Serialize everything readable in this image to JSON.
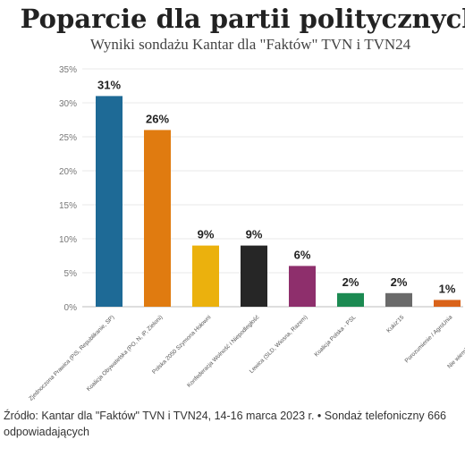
{
  "chart_data": {
    "type": "bar",
    "title": "Poparcie dla partii politycznych",
    "subtitle": "Wyniki sondażu Kantar dla \"Faktów\" TVN i TVN24",
    "categories": [
      "Zjednoczona Prawica (PiS, Republikanie, SP)",
      "Koalicja Obywatelska (PO, N, iP, Zieloni)",
      "Polska 2050 Szymona Hołowni",
      "Konfederacja Wolność i Niepodległość",
      "Lewica (SLD, Wiosna, Razem)",
      "Koalicja Polska - PSL",
      "Kukiz'15",
      "Porozumienie / AgroUnia",
      "Nie wiem/trudno powiedzieć"
    ],
    "values": [
      31,
      26,
      9,
      9,
      6,
      2,
      2,
      1,
      null
    ],
    "data_labels": [
      "31%",
      "26%",
      "9%",
      "9%",
      "6%",
      "2%",
      "2%",
      "1%",
      ""
    ],
    "colors": [
      "#1e6a96",
      "#e07b10",
      "#ebb10d",
      "#262626",
      "#8e2f6c",
      "#1c8a52",
      "#6a6a6a",
      "#d9631a",
      "#cccccc"
    ],
    "ylim": [
      0,
      35
    ],
    "yticks": [
      "0%",
      "5%",
      "10%",
      "15%",
      "20%",
      "25%",
      "30%",
      "35%"
    ],
    "grid": true,
    "xlabel": "",
    "ylabel": ""
  },
  "source": "Źródło: Kantar dla \"Faktów\" TVN i TVN24, 14-16 marca 2023 r. • Sondaż telefoniczny 666 odpowiadających"
}
